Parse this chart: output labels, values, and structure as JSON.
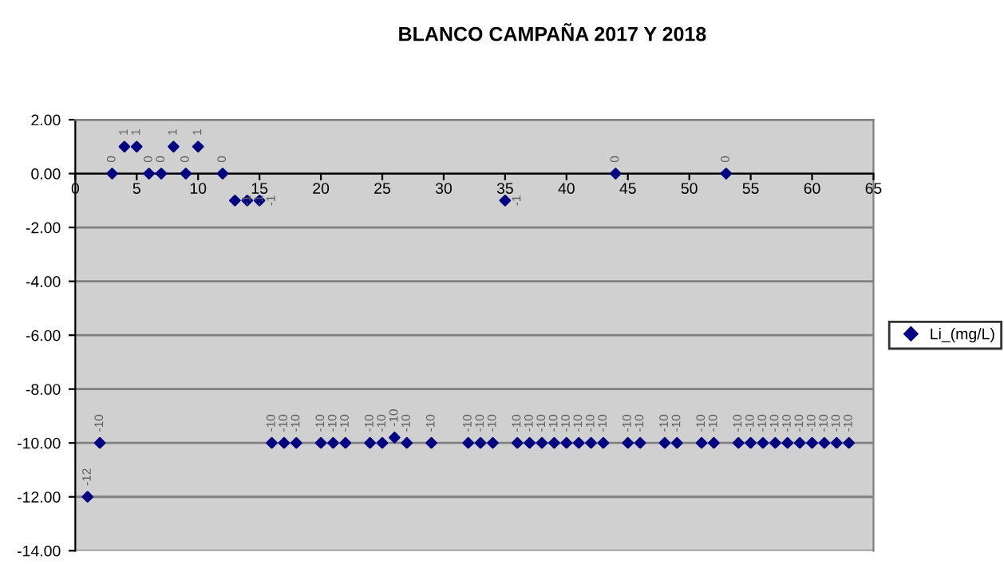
{
  "chart_data": {
    "type": "scatter",
    "title": "BLANCO CAMPAÑA 2017 Y 2018",
    "series": [
      {
        "name": "Li_(mg/L)",
        "color": "#000080",
        "x": [
          1,
          2,
          3,
          4,
          5,
          6,
          7,
          8,
          9,
          10,
          12,
          13,
          14,
          15,
          16,
          17,
          18,
          20,
          21,
          22,
          24,
          25,
          26,
          27,
          29,
          32,
          33,
          34,
          35,
          36,
          37,
          38,
          39,
          40,
          41,
          42,
          43,
          44,
          45,
          46,
          48,
          49,
          51,
          52,
          53,
          54,
          55,
          56,
          57,
          58,
          59,
          60,
          61,
          62,
          63
        ],
        "values": [
          -12,
          -10,
          0,
          1,
          1,
          0,
          0,
          1,
          0,
          1,
          0,
          -1,
          -1,
          -1,
          -10,
          -10,
          -10,
          -10,
          -10,
          -10,
          -10,
          -10,
          -9.8,
          -10,
          -10,
          -10,
          -10,
          -10,
          -1,
          -10,
          -10,
          -10,
          -10,
          -10,
          -10,
          -10,
          -10,
          0,
          -10,
          -10,
          -10,
          -10,
          -10,
          -10,
          0,
          -10,
          -10,
          -10,
          -10,
          -10,
          -10,
          -10,
          -10,
          -10,
          -10
        ],
        "value_labels": [
          "-12",
          "-10",
          "0",
          "1",
          "1",
          "0",
          "0",
          "1",
          "0",
          "1",
          "0",
          "-1",
          "-1",
          "-1",
          "-10",
          "-10",
          "-10",
          "-10",
          "-10",
          "-10",
          "-10",
          "-10",
          "-10",
          "-10",
          "-10",
          "-10",
          "-10",
          "-10",
          "-1",
          "-10",
          "-10",
          "-10",
          "-10",
          "-10",
          "-10",
          "-10",
          "-10",
          "0",
          "-10",
          "-10",
          "-10",
          "-10",
          "-10",
          "-10",
          "0",
          "-10",
          "-10",
          "-10",
          "-10",
          "-10",
          "-10",
          "-10",
          "-10",
          "-10",
          "-10"
        ]
      }
    ],
    "xlim": [
      0,
      65
    ],
    "xticks": [
      0,
      5,
      10,
      15,
      20,
      25,
      30,
      35,
      40,
      45,
      50,
      55,
      60,
      65
    ],
    "ylim": [
      -14,
      2
    ],
    "yticks": [
      {
        "value": 2,
        "label": "2.00"
      },
      {
        "value": 0,
        "label": "0.00"
      },
      {
        "value": -2,
        "label": "-2.00"
      },
      {
        "value": -4,
        "label": "-4.00"
      },
      {
        "value": -6,
        "label": "-6.00"
      },
      {
        "value": -8,
        "label": "-8.00"
      },
      {
        "value": -10,
        "label": "-10.00"
      },
      {
        "value": -12,
        "label": "-12.00"
      },
      {
        "value": -14,
        "label": "-14.00"
      }
    ],
    "grid": "y",
    "legend": "right",
    "marker": "diamond"
  }
}
